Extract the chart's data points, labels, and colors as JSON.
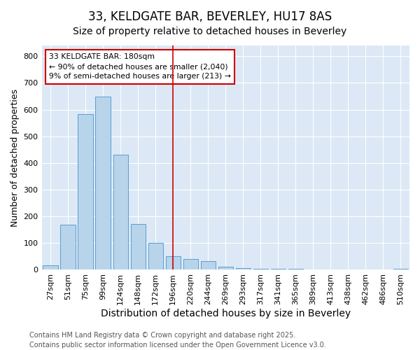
{
  "title1": "33, KELDGATE BAR, BEVERLEY, HU17 8AS",
  "title2": "Size of property relative to detached houses in Beverley",
  "xlabel": "Distribution of detached houses by size in Beverley",
  "ylabel": "Number of detached properties",
  "categories": [
    "27sqm",
    "51sqm",
    "75sqm",
    "99sqm",
    "124sqm",
    "148sqm",
    "172sqm",
    "196sqm",
    "220sqm",
    "244sqm",
    "269sqm",
    "293sqm",
    "317sqm",
    "341sqm",
    "365sqm",
    "389sqm",
    "413sqm",
    "438sqm",
    "462sqm",
    "486sqm",
    "510sqm"
  ],
  "values": [
    18,
    168,
    582,
    648,
    430,
    172,
    102,
    50,
    40,
    33,
    12,
    6,
    4,
    3,
    3,
    2,
    2,
    2,
    1,
    1,
    4
  ],
  "bar_color": "#b8d4ea",
  "bar_edge_color": "#5a9fd4",
  "vline_x_idx": 7,
  "vline_color": "#cc0000",
  "annotation_text": "33 KELDGATE BAR: 180sqm\n← 90% of detached houses are smaller (2,040)\n9% of semi-detached houses are larger (213) →",
  "annotation_box_color": "#ffffff",
  "annotation_box_edge": "#cc0000",
  "ylim": [
    0,
    840
  ],
  "yticks": [
    0,
    100,
    200,
    300,
    400,
    500,
    600,
    700,
    800
  ],
  "footer1": "Contains HM Land Registry data © Crown copyright and database right 2025.",
  "footer2": "Contains public sector information licensed under the Open Government Licence v3.0.",
  "fig_bg_color": "#ffffff",
  "plot_bg_color": "#dce8f5",
  "grid_color": "#ffffff",
  "title1_fontsize": 12,
  "title2_fontsize": 10,
  "xlabel_fontsize": 10,
  "ylabel_fontsize": 9,
  "tick_fontsize": 8,
  "footer_fontsize": 7
}
